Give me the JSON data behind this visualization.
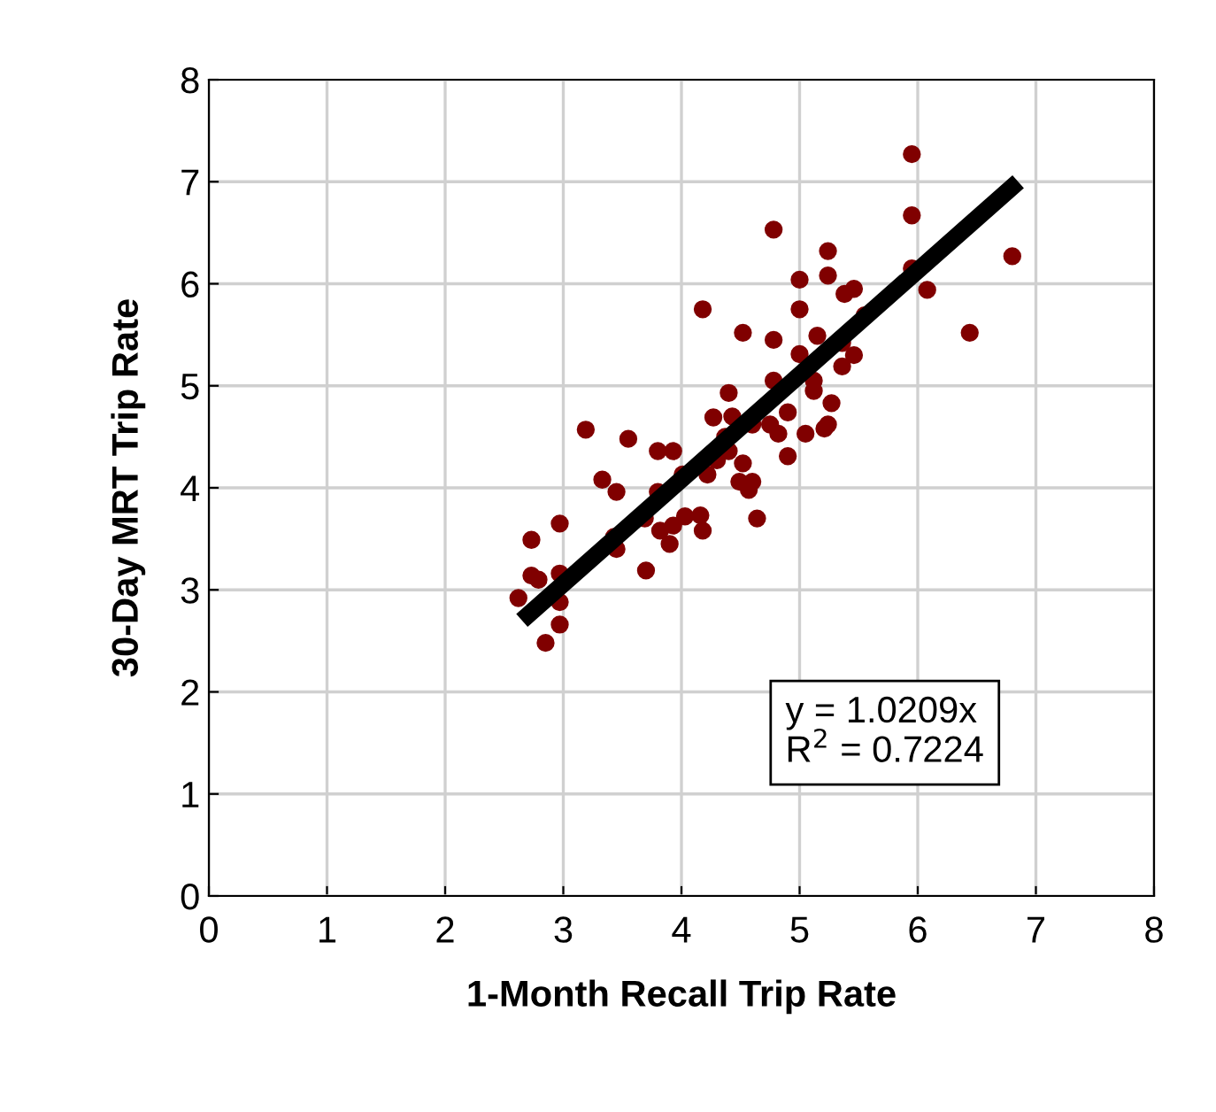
{
  "chart_data": {
    "type": "scatter",
    "xlabel": "1-Month Recall Trip Rate",
    "ylabel": "30-Day MRT Trip Rate",
    "xlim": [
      0,
      8
    ],
    "ylim": [
      0,
      8
    ],
    "xticks": [
      0,
      1,
      2,
      3,
      4,
      5,
      6,
      7,
      8
    ],
    "yticks": [
      0,
      1,
      2,
      3,
      4,
      5,
      6,
      7,
      8
    ],
    "grid": true,
    "annotations": [
      "y = 1.0209x\nR$^{2}$ = 0.7224"
    ],
    "series": [
      {
        "color": "#800000",
        "marker": "circle",
        "x": [
          2.62,
          2.73,
          2.73,
          2.85,
          2.97,
          2.97,
          2.97,
          2.97,
          3.19,
          3.33,
          3.43,
          3.45,
          3.55,
          3.45,
          3.69,
          3.7,
          3.8,
          3.8,
          3.93,
          3.82,
          3.93,
          4.03,
          3.9,
          4.01,
          4.16,
          4.18,
          4.22,
          4.3,
          4.27,
          4.18,
          4.37,
          4.4,
          4.43,
          4.4,
          4.52,
          4.49,
          4.57,
          4.6,
          4.64,
          4.52,
          4.75,
          4.78,
          4.78,
          4.78,
          4.82,
          4.9,
          4.9,
          5.0,
          5.0,
          5.0,
          5.12,
          5.15,
          5.12,
          5.24,
          5.24,
          5.24,
          5.27,
          5.36,
          5.36,
          5.38,
          5.46,
          5.46,
          5.55,
          5.95,
          5.95,
          5.95,
          6.08,
          6.44,
          6.8,
          2.79,
          5.21,
          4.6,
          5.05
        ],
        "values": [
          2.92,
          3.49,
          3.14,
          2.48,
          3.65,
          3.16,
          2.88,
          2.66,
          4.57,
          4.08,
          3.52,
          3.4,
          4.48,
          3.96,
          3.7,
          3.19,
          3.96,
          4.36,
          4.36,
          3.58,
          3.63,
          3.72,
          3.45,
          4.13,
          3.73,
          3.58,
          4.13,
          4.27,
          4.69,
          5.75,
          4.5,
          4.93,
          4.7,
          4.36,
          4.24,
          4.06,
          3.98,
          4.62,
          3.7,
          5.52,
          4.62,
          5.45,
          6.53,
          5.05,
          4.53,
          4.31,
          4.74,
          5.75,
          6.04,
          5.31,
          4.95,
          5.49,
          5.05,
          6.32,
          6.08,
          4.62,
          4.83,
          5.42,
          5.19,
          5.9,
          5.3,
          5.95,
          5.69,
          7.27,
          6.67,
          6.15,
          5.94,
          5.52,
          6.27,
          3.1,
          4.58,
          4.06,
          4.53
        ]
      },
      {
        "color": "#000000",
        "type": "line",
        "x": [
          2.65,
          6.85
        ],
        "values": [
          2.7,
          7.0
        ]
      }
    ]
  }
}
